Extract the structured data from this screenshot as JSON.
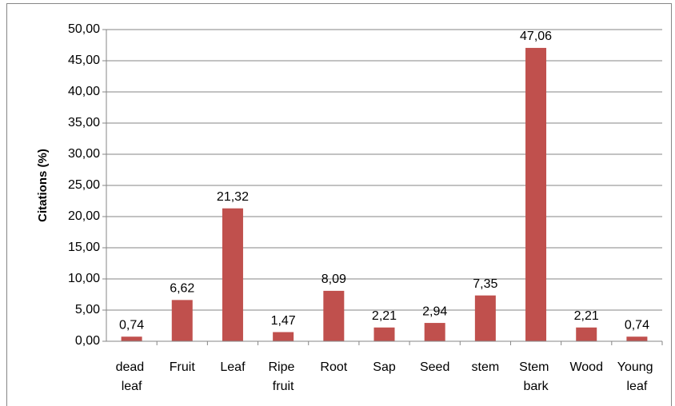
{
  "chart_data": {
    "type": "bar",
    "y_label": "Citations (%)",
    "categories": [
      "dead leaf",
      "Fruit",
      "Leaf",
      "Ripe fruit",
      "Root",
      "Sap",
      "Seed",
      "stem",
      "Stem bark",
      "Wood",
      "Young leaf"
    ],
    "values": [
      0.74,
      6.62,
      21.32,
      1.47,
      8.09,
      2.21,
      2.94,
      7.35,
      47.06,
      2.21,
      0.74
    ],
    "value_labels": [
      "0,74",
      "6,62",
      "21,32",
      "1,47",
      "8,09",
      "2,21",
      "2,94",
      "7,35",
      "47,06",
      "2,21",
      "0,74"
    ],
    "color": "#c0504d",
    "ylim": [
      0,
      50
    ],
    "yticks": [
      {
        "value": 0,
        "label": "0,00"
      },
      {
        "value": 5,
        "label": "5,00"
      },
      {
        "value": 10,
        "label": "10,00"
      },
      {
        "value": 15,
        "label": "15,00"
      },
      {
        "value": 20,
        "label": "20,00"
      },
      {
        "value": 25,
        "label": "25,00"
      },
      {
        "value": 30,
        "label": "30,00"
      },
      {
        "value": 35,
        "label": "35,00"
      },
      {
        "value": 40,
        "label": "40,00"
      },
      {
        "value": 45,
        "label": "45,00"
      },
      {
        "value": 50,
        "label": "50,00"
      }
    ],
    "grid": true
  }
}
